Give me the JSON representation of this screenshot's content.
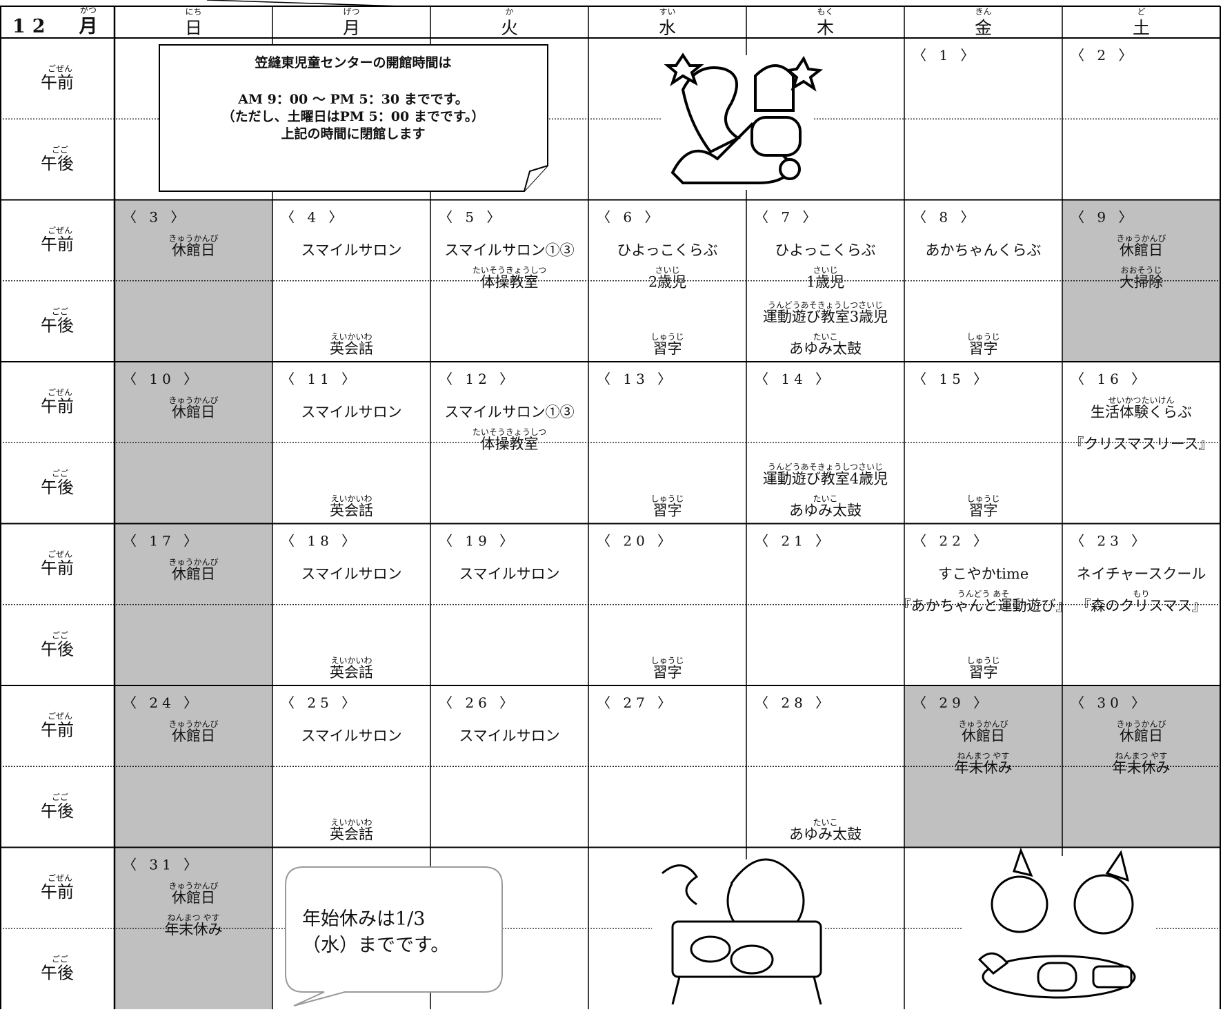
{
  "header": {
    "month": "12",
    "month_kanji": "月",
    "month_ruby": "がつ",
    "days": [
      {
        "ruby": "にち",
        "text": "日"
      },
      {
        "ruby": "げつ",
        "text": "月"
      },
      {
        "ruby": "か",
        "text": "火"
      },
      {
        "ruby": "すい",
        "text": "水"
      },
      {
        "ruby": "もく",
        "text": "木"
      },
      {
        "ruby": "きん",
        "text": "金"
      },
      {
        "ruby": "ど",
        "text": "土"
      }
    ]
  },
  "labels": {
    "am": {
      "ruby": "ごぜん",
      "text": "午前"
    },
    "pm": {
      "ruby": "ごご",
      "text": "午後"
    }
  },
  "weeks": [
    {
      "cells": [
        {},
        {},
        {},
        {},
        {},
        {
          "date": "〈 1 〉"
        },
        {
          "date": "〈 2 〉"
        }
      ]
    },
    {
      "cells": [
        {
          "date": "〈 3 〉",
          "closed": true,
          "am": [
            {
              "ruby": "きゅうかんび",
              "text": "休館日"
            }
          ]
        },
        {
          "date": "〈 4 〉",
          "am": [
            {
              "text": "スマイルサロン"
            }
          ],
          "pm": [
            {
              "ruby": "えいかいわ",
              "text": "英会話"
            }
          ]
        },
        {
          "date": "〈 5 〉",
          "am": [
            {
              "text": "スマイルサロン①③"
            },
            {
              "ruby": "たいそうきょうしつ",
              "text": "体操教室"
            }
          ]
        },
        {
          "date": "〈 6 〉",
          "am": [
            {
              "text": "ひよっこくらぶ"
            },
            {
              "ruby": "さいじ",
              "text": "2歳児"
            }
          ],
          "pm": [
            {
              "ruby": "しゅうじ",
              "text": "習字"
            }
          ]
        },
        {
          "date": "〈 7 〉",
          "am": [
            {
              "text": "ひよっこくらぶ"
            },
            {
              "ruby": "さいじ",
              "text": "1歳児"
            }
          ],
          "pm": [
            {
              "ruby": "うんどうあそきょうしつさいじ",
              "text": "運動遊び教室3歳児"
            },
            {
              "ruby": "たいこ",
              "text": "あゆみ太鼓"
            }
          ]
        },
        {
          "date": "〈 8 〉",
          "am": [
            {
              "text": "あかちゃんくらぶ"
            }
          ],
          "pm": [
            {
              "ruby": "しゅうじ",
              "text": "習字"
            }
          ]
        },
        {
          "date": "〈 9 〉",
          "closed": true,
          "am": [
            {
              "ruby": "きゅうかんび",
              "text": "休館日"
            },
            {
              "ruby": "おおそうじ",
              "text": "大掃除"
            }
          ]
        }
      ]
    },
    {
      "cells": [
        {
          "date": "〈 10 〉",
          "closed": true,
          "am": [
            {
              "ruby": "きゅうかんび",
              "text": "休館日"
            }
          ]
        },
        {
          "date": "〈 11 〉",
          "am": [
            {
              "text": "スマイルサロン"
            }
          ],
          "pm": [
            {
              "ruby": "えいかいわ",
              "text": "英会話"
            }
          ]
        },
        {
          "date": "〈 12 〉",
          "am": [
            {
              "text": "スマイルサロン①③"
            },
            {
              "ruby": "たいそうきょうしつ",
              "text": "体操教室"
            }
          ]
        },
        {
          "date": "〈 13 〉",
          "pm": [
            {
              "ruby": "しゅうじ",
              "text": "習字"
            }
          ]
        },
        {
          "date": "〈 14 〉",
          "pm": [
            {
              "ruby": "うんどうあそきょうしつさいじ",
              "text": "運動遊び教室4歳児"
            },
            {
              "ruby": "たいこ",
              "text": "あゆみ太鼓"
            }
          ]
        },
        {
          "date": "〈 15 〉",
          "pm": [
            {
              "ruby": "しゅうじ",
              "text": "習字"
            }
          ]
        },
        {
          "date": "〈 16 〉",
          "am": [
            {
              "ruby": "せいかつたいけん",
              "text": "生活体験くらぶ"
            },
            {
              "text": "『クリスマスリース』"
            }
          ]
        }
      ]
    },
    {
      "cells": [
        {
          "date": "〈 17 〉",
          "closed": true,
          "am": [
            {
              "ruby": "きゅうかんび",
              "text": "休館日"
            }
          ]
        },
        {
          "date": "〈 18 〉",
          "am": [
            {
              "text": "スマイルサロン"
            }
          ],
          "pm": [
            {
              "ruby": "えいかいわ",
              "text": "英会話"
            }
          ]
        },
        {
          "date": "〈 19 〉",
          "am": [
            {
              "text": "スマイルサロン"
            }
          ]
        },
        {
          "date": "〈 20 〉",
          "pm": [
            {
              "ruby": "しゅうじ",
              "text": "習字"
            }
          ]
        },
        {
          "date": "〈 21 〉"
        },
        {
          "date": "〈 22 〉",
          "am": [
            {
              "text": "すこやかtime"
            },
            {
              "ruby": "うんどう あそ",
              "text": "『あかちゃんと運動遊び』"
            }
          ],
          "pm": [
            {
              "ruby": "しゅうじ",
              "text": "習字"
            }
          ]
        },
        {
          "date": "〈 23 〉",
          "am": [
            {
              "text": "ネイチャースクール"
            },
            {
              "ruby": "もり",
              "text": "『森のクリスマス』"
            }
          ]
        }
      ]
    },
    {
      "cells": [
        {
          "date": "〈 24 〉",
          "closed": true,
          "am": [
            {
              "ruby": "きゅうかんび",
              "text": "休館日"
            }
          ]
        },
        {
          "date": "〈 25 〉",
          "am": [
            {
              "text": "スマイルサロン"
            }
          ],
          "pm": [
            {
              "ruby": "えいかいわ",
              "text": "英会話"
            }
          ]
        },
        {
          "date": "〈 26 〉",
          "am": [
            {
              "text": "スマイルサロン"
            }
          ]
        },
        {
          "date": "〈 27 〉"
        },
        {
          "date": "〈 28 〉",
          "pm": [
            {
              "ruby": "たいこ",
              "text": "あゆみ太鼓"
            }
          ]
        },
        {
          "date": "〈 29 〉",
          "closed": true,
          "am": [
            {
              "ruby": "きゅうかんび",
              "text": "休館日"
            },
            {
              "ruby": "ねんまつ やす",
              "text": "年末休み"
            }
          ]
        },
        {
          "date": "〈 30 〉",
          "closed": true,
          "am": [
            {
              "ruby": "きゅうかんび",
              "text": "休館日"
            },
            {
              "ruby": "ねんまつ やす",
              "text": "年末休み"
            }
          ]
        }
      ]
    },
    {
      "cells": [
        {
          "date": "〈 31 〉",
          "closed": true,
          "am": [
            {
              "ruby": "きゅうかんび",
              "text": "休館日"
            },
            {
              "ruby": "ねんまつ やす",
              "text": "年末休み"
            }
          ]
        },
        {},
        {},
        {},
        {},
        {},
        {}
      ]
    }
  ],
  "notice": {
    "title": "笠縫東児童センターの開館時間は",
    "lines": [
      "AM 9：00 ～ PM 5：30 までです。",
      "（ただし、土曜日はPM 5：00 までです。）",
      "上記の時間に閉館します"
    ]
  },
  "bubble": {
    "lines": [
      "年始休みは1/3",
      "（水）までです。"
    ]
  }
}
